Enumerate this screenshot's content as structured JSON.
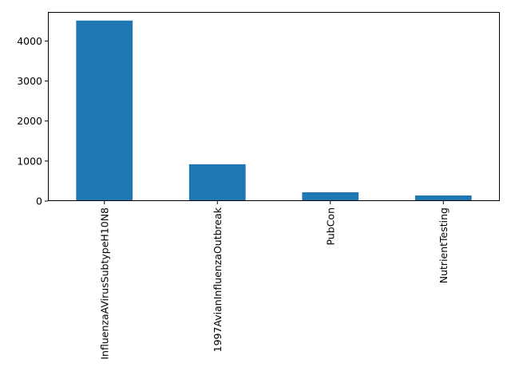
{
  "chart_data": {
    "type": "bar",
    "title": "",
    "xlabel": "",
    "ylabel": "",
    "categories": [
      "InfluenzaAVirusSubtypeH10N8",
      "1997AvianInfluenzaOutbreak",
      "PubCon",
      "NutrientTesting"
    ],
    "values": [
      4510,
      920,
      220,
      140
    ],
    "ylim": [
      0,
      4725
    ],
    "yticks": [
      0,
      1000,
      2000,
      3000,
      4000
    ],
    "grid": false,
    "legend": "none",
    "bar_color": "#1f77b4"
  }
}
